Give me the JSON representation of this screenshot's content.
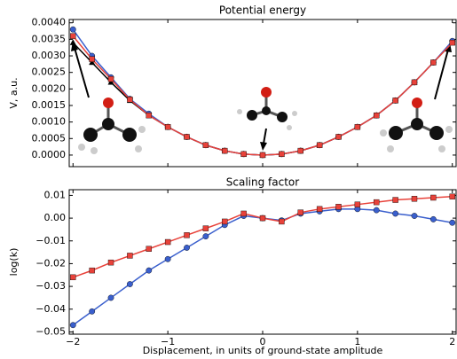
{
  "chart_data": [
    {
      "type": "line",
      "title": "Potential energy",
      "y_label": "V, a.u.",
      "x": [
        -2,
        -1.8,
        -1.6,
        -1.4,
        -1.2,
        -1,
        -0.8,
        -0.6,
        -0.4,
        -0.2,
        0,
        0.2,
        0.4,
        0.6,
        0.8,
        1,
        1.2,
        1.4,
        1.6,
        1.8,
        2
      ],
      "series": [
        {
          "color": "#000000",
          "marker": "triangle",
          "values": [
            0.0034,
            0.0028,
            0.0022,
            0.00165,
            0.0012,
            0.00085,
            0.00055,
            0.0003,
            0.00013,
            3e-05,
            0,
            3e-05,
            0.00013,
            0.0003,
            0.00055,
            0.00085,
            0.0012,
            0.00165,
            0.0022,
            0.0028,
            0.0034
          ]
        },
        {
          "color": "#3a5fcd",
          "marker": "circle",
          "values": [
            0.0038,
            0.003,
            0.00235,
            0.0017,
            0.00125,
            0.00085,
            0.00055,
            0.0003,
            0.00013,
            3e-05,
            0,
            3e-05,
            0.00013,
            0.0003,
            0.00055,
            0.00085,
            0.0012,
            0.00165,
            0.0022,
            0.0028,
            0.00345
          ]
        },
        {
          "color": "#e8423a",
          "marker": "square",
          "values": [
            0.0036,
            0.0029,
            0.0023,
            0.00168,
            0.0012,
            0.00085,
            0.00055,
            0.0003,
            0.00013,
            3e-05,
            0,
            3e-05,
            0.00013,
            0.0003,
            0.00055,
            0.00085,
            0.0012,
            0.00165,
            0.0022,
            0.0028,
            0.0034
          ]
        }
      ],
      "xlim": [
        -2.04,
        2.04
      ],
      "xticks": [
        -2,
        -1,
        0,
        1,
        2
      ],
      "show_xtick_labels": false,
      "ylim": [
        -0.00035,
        0.0041
      ],
      "yticks": [
        {
          "value": 0,
          "label": "0.0000"
        },
        {
          "value": 0.0005,
          "label": "0.0005"
        },
        {
          "value": 0.001,
          "label": "0.0010"
        },
        {
          "value": 0.0015,
          "label": "0.0015"
        },
        {
          "value": 0.002,
          "label": "0.0020"
        },
        {
          "value": 0.0025,
          "label": "0.0025"
        },
        {
          "value": 0.003,
          "label": "0.0030"
        },
        {
          "value": 0.0035,
          "label": "0.0035"
        },
        {
          "value": 0.004,
          "label": "0.0040"
        }
      ]
    },
    {
      "type": "line",
      "title": "Scaling factor",
      "y_label": "log(k)",
      "x_label": "Displacement, in units of ground-state amplitude",
      "x": [
        -2,
        -1.8,
        -1.6,
        -1.4,
        -1.2,
        -1,
        -0.8,
        -0.6,
        -0.4,
        -0.2,
        0,
        0.2,
        0.4,
        0.6,
        0.8,
        1,
        1.2,
        1.4,
        1.6,
        1.8,
        2
      ],
      "series": [
        {
          "color": "#3a5fcd",
          "marker": "circle",
          "values": [
            -0.047,
            -0.041,
            -0.035,
            -0.029,
            -0.023,
            -0.018,
            -0.013,
            -0.008,
            -0.003,
            0.001,
            0,
            -0.001,
            0.002,
            0.003,
            0.004,
            0.004,
            0.0035,
            0.002,
            0.001,
            -0.0005,
            -0.002
          ]
        },
        {
          "color": "#e8423a",
          "marker": "square",
          "values": [
            -0.026,
            -0.023,
            -0.0195,
            -0.0165,
            -0.0135,
            -0.0105,
            -0.0075,
            -0.0045,
            -0.0015,
            0.002,
            0,
            -0.0015,
            0.0025,
            0.004,
            0.005,
            0.006,
            0.007,
            0.008,
            0.0085,
            0.009,
            0.0095
          ]
        }
      ],
      "xlim": [
        -2.04,
        2.04
      ],
      "show_xtick_labels": true,
      "xticks": [
        {
          "value": -2,
          "label": "−2"
        },
        {
          "value": -1,
          "label": "−1"
        },
        0,
        1,
        2
      ],
      "ylim": [
        -0.051,
        0.0125
      ],
      "yticks": [
        {
          "value": -0.05,
          "label": "−0.05"
        },
        {
          "value": -0.04,
          "label": "−0.04"
        },
        {
          "value": -0.03,
          "label": "−0.03"
        },
        {
          "value": -0.02,
          "label": "−0.02"
        },
        {
          "value": -0.01,
          "label": "−0.01"
        },
        {
          "value": 0,
          "label": "0.00"
        },
        0.01
      ]
    }
  ]
}
